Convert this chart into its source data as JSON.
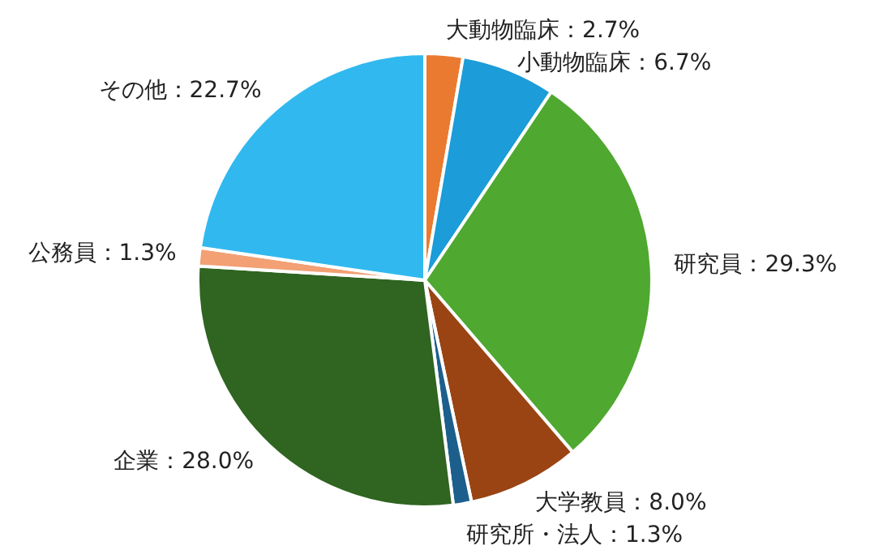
{
  "chart_data": {
    "type": "pie",
    "categories": [
      "大動物臨床",
      "小動物臨床",
      "研究員",
      "大学教員",
      "研究所・法人",
      "企業",
      "公務員",
      "その他"
    ],
    "values": [
      2.7,
      6.7,
      29.3,
      8.0,
      1.3,
      28.0,
      1.3,
      22.7
    ],
    "value_labels": [
      "：2.7%",
      "：6.7%",
      "：29.3%",
      "：8.0%",
      "：1.3%",
      "：28.0%",
      "：1.3%",
      "：22.7%"
    ],
    "colors": [
      "#ea7a30",
      "#1c9cd8",
      "#4fa82f",
      "#9a4414",
      "#1d5f8c",
      "#2f6421",
      "#f2a074",
      "#31b9ef"
    ],
    "legend": false
  }
}
